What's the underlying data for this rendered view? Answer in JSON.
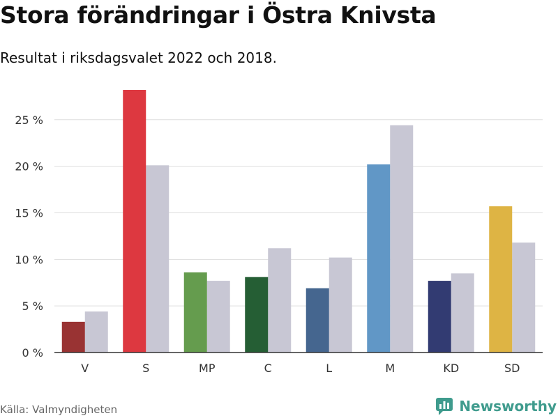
{
  "title": "Stora förändringar i Östra Knivsta",
  "subtitle": "Resultat i riksdagsvalet 2022 och 2018.",
  "source": "Källa: Valmyndigheten",
  "brand": {
    "name": "Newsworthy",
    "icon": "newsworthy-logo-icon",
    "color": "#3f9b8d"
  },
  "colors": {
    "previous_election": "#c8c7d4",
    "gridline": "#dddddd",
    "axis": "#333333"
  },
  "chart_data": {
    "type": "bar",
    "categories": [
      "V",
      "S",
      "MP",
      "C",
      "L",
      "M",
      "KD",
      "SD"
    ],
    "series": [
      {
        "values": [
          3.3,
          28.2,
          8.6,
          8.1,
          6.9,
          20.2,
          7.7,
          15.7
        ],
        "colors": [
          "#993333",
          "#dd3840",
          "#659c4e",
          "#255e34",
          "#45668f",
          "#6197c6",
          "#323b72",
          "#deb444"
        ]
      },
      {
        "values": [
          4.4,
          20.1,
          7.7,
          11.2,
          10.2,
          24.4,
          8.5,
          11.8
        ]
      }
    ],
    "ylim": [
      0,
      28.5
    ],
    "yticks": [
      0,
      5,
      10,
      15,
      20,
      25
    ],
    "ytick_labels": [
      "0 %",
      "5 %",
      "10 %",
      "15 %",
      "20 %",
      "25 %"
    ],
    "grid": true,
    "legend": "none",
    "xlabel": "",
    "ylabel": ""
  }
}
